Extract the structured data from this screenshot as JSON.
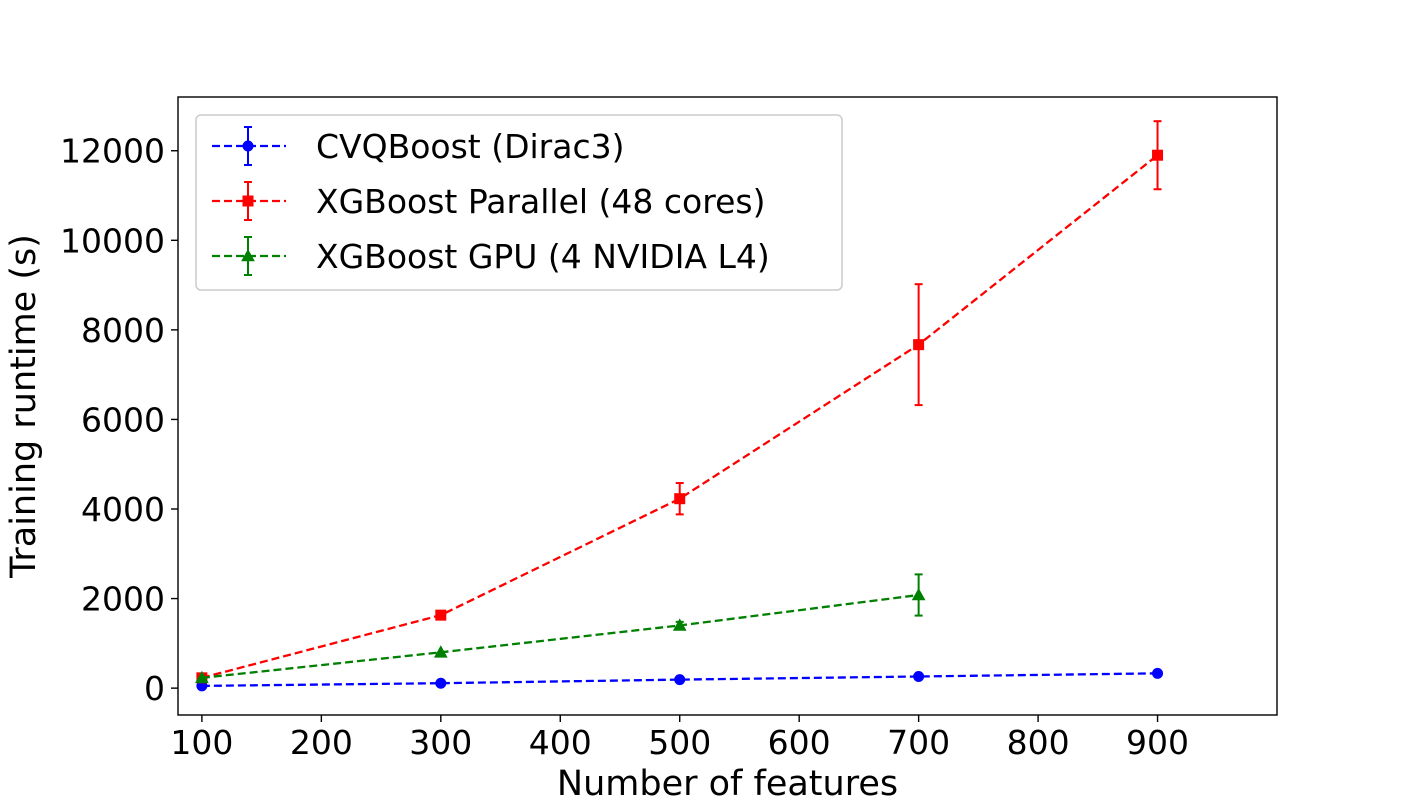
{
  "chart_data": {
    "type": "line",
    "title": "",
    "xlabel": "Number of features",
    "ylabel": "Training runtime (s)",
    "xlim": [
      80,
      1000
    ],
    "ylim": [
      -600,
      13200
    ],
    "xticks": [
      100,
      200,
      300,
      400,
      500,
      600,
      700,
      800,
      900
    ],
    "yticks": [
      0,
      2000,
      4000,
      6000,
      8000,
      10000,
      12000
    ],
    "xtick_labels": [
      "100",
      "200",
      "300",
      "400",
      "500",
      "600",
      "700",
      "800",
      "900"
    ],
    "ytick_labels": [
      "0",
      "2000",
      "4000",
      "6000",
      "8000",
      "10000",
      "12000"
    ],
    "legend_position": "upper-left",
    "grid": false,
    "series": [
      {
        "name": "CVQBoost (Dirac3)",
        "color": "#0000ff",
        "marker": "circle",
        "line_style": "dashed",
        "x": [
          100,
          300,
          500,
          700,
          900
        ],
        "y": [
          50,
          110,
          190,
          260,
          330
        ],
        "yerr": [
          0,
          0,
          0,
          0,
          0
        ]
      },
      {
        "name": "XGBoost Parallel (48 cores)",
        "color": "#ff0000",
        "marker": "square",
        "line_style": "dashed",
        "x": [
          100,
          300,
          500,
          700,
          900
        ],
        "y": [
          230,
          1630,
          4230,
          7670,
          11900
        ],
        "yerr": [
          0,
          80,
          350,
          1350,
          760
        ]
      },
      {
        "name": "XGBoost GPU (4 NVIDIA L4)",
        "color": "#008000",
        "marker": "triangle",
        "line_style": "dashed",
        "x": [
          100,
          300,
          500,
          700
        ],
        "y": [
          230,
          800,
          1400,
          2080
        ],
        "yerr": [
          0,
          0,
          80,
          460
        ]
      }
    ]
  }
}
